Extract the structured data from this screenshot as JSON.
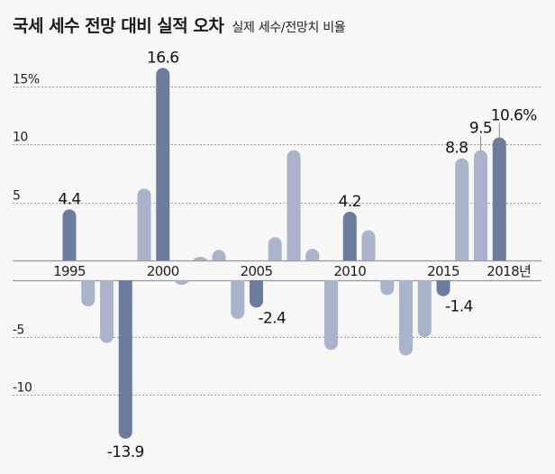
{
  "title": "국세 세수 전망 대비 실적 오차",
  "subtitle": "실제 세수/전망치 비율",
  "colors": {
    "background": "#f7f7f7",
    "highlight_bar": "#6c7c9f",
    "normal_bar": "#a9b4ca",
    "axis": "#999999",
    "grid": "#9a9a9a"
  },
  "chart_data": {
    "type": "bar",
    "title": "국세 세수 전망 대비 실적 오차",
    "subtitle": "실제 세수/전망치 비율",
    "xlabel": "",
    "ylabel": "",
    "ylim": [
      -15,
      17
    ],
    "grid": true,
    "y_ticks": [
      {
        "value": 15,
        "label": "15%"
      },
      {
        "value": 10,
        "label": "10"
      },
      {
        "value": 5,
        "label": "5"
      },
      {
        "value": -5,
        "label": "-5"
      },
      {
        "value": -10,
        "label": "-10"
      }
    ],
    "x_tick_labels": [
      {
        "year": 1995,
        "label": "1995"
      },
      {
        "year": 2000,
        "label": "2000"
      },
      {
        "year": 2005,
        "label": "2005"
      },
      {
        "year": 2010,
        "label": "2010"
      },
      {
        "year": 2015,
        "label": "2015"
      },
      {
        "year": 2018,
        "label": "2018년"
      }
    ],
    "categories": [
      1995,
      1996,
      1997,
      1998,
      1999,
      2000,
      2001,
      2002,
      2003,
      2004,
      2005,
      2006,
      2007,
      2008,
      2009,
      2010,
      2011,
      2012,
      2013,
      2014,
      2015,
      2016,
      2017,
      2018
    ],
    "values": [
      4.4,
      -2.3,
      -5.5,
      -13.9,
      6.2,
      16.6,
      -0.4,
      0.3,
      0.9,
      -3.4,
      -2.4,
      2.0,
      9.5,
      1.0,
      -6.1,
      4.2,
      2.6,
      -1.3,
      -6.6,
      -5.0,
      -1.4,
      8.8,
      9.5,
      10.6
    ],
    "highlighted": [
      1995,
      1998,
      2000,
      2005,
      2010,
      2015,
      2018
    ],
    "data_labels": [
      {
        "year": 1995,
        "label": "4.4"
      },
      {
        "year": 1998,
        "label": "-13.9"
      },
      {
        "year": 2000,
        "label": "16.6"
      },
      {
        "year": 2005,
        "label": "-2.4"
      },
      {
        "year": 2010,
        "label": "4.2"
      },
      {
        "year": 2015,
        "label": "-1.4"
      },
      {
        "year": 2016,
        "label": "8.8"
      },
      {
        "year": 2017,
        "label": "9.5",
        "leader": true
      },
      {
        "year": 2018,
        "label": "10.6%",
        "leader": true
      }
    ]
  }
}
